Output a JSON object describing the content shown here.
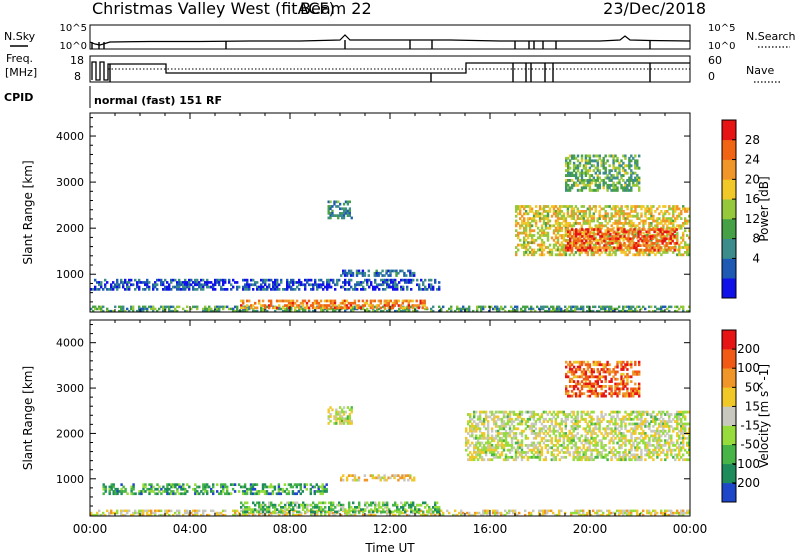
{
  "header": {
    "station": "Christmas Valley West (fitACF)",
    "beam": "Beam 22",
    "date": "23/Dec/2018"
  },
  "status_panels": {
    "nsky_label": "N.Sky",
    "nsearch_label": "N.Search",
    "noise_ticks_left": [
      "10^5",
      "10^0"
    ],
    "noise_ticks_right": [
      "10^5",
      "10^0"
    ],
    "freq_label_line1": "Freq.",
    "freq_label_line2": "[MHz]",
    "freq_ticks": [
      "18",
      "8"
    ],
    "nave_label": "Nave",
    "nave_ticks": [
      "60",
      "0"
    ],
    "cpid_label": "CPID",
    "cpid_value": "normal (fast) 151 RF"
  },
  "chart_data": [
    {
      "type": "heatmap",
      "id": "power",
      "ylabel": "Slant Range [km]",
      "xlabel": "",
      "yticks": [
        1000,
        2000,
        3000,
        4000
      ],
      "ylim": [
        180,
        4500
      ],
      "xlim_hours": [
        0,
        24
      ],
      "colorbar_label": "Power [dB]",
      "colorbar_ticks": [
        "28",
        "24",
        "20",
        "16",
        "12",
        "8",
        "4"
      ],
      "colorbar_colors": [
        "#1010e8",
        "#1e5ab4",
        "#3c8c8c",
        "#46a046",
        "#96c83c",
        "#f0c828",
        "#f09628",
        "#f06414",
        "#e61414"
      ],
      "regions": [
        {
          "t0": 0.0,
          "t1": 24.0,
          "r0": 180,
          "r1": 320,
          "level": 0.35
        },
        {
          "t0": 6.0,
          "t1": 13.5,
          "r0": 250,
          "r1": 450,
          "level": 0.75
        },
        {
          "t0": 0.0,
          "t1": 14.0,
          "r0": 650,
          "r1": 900,
          "level": 0.15
        },
        {
          "t0": 10.0,
          "t1": 13.0,
          "r0": 950,
          "r1": 1100,
          "level": 0.18
        },
        {
          "t0": 17.0,
          "t1": 24.0,
          "r0": 1400,
          "r1": 2500,
          "level": 0.6
        },
        {
          "t0": 19.0,
          "t1": 23.5,
          "r0": 1500,
          "r1": 2000,
          "level": 0.85
        },
        {
          "t0": 19.0,
          "t1": 22.0,
          "r0": 2800,
          "r1": 3600,
          "level": 0.4
        },
        {
          "t0": 9.5,
          "t1": 10.5,
          "r0": 2200,
          "r1": 2600,
          "level": 0.3
        }
      ]
    },
    {
      "type": "heatmap",
      "id": "velocity",
      "ylabel": "Slant Range [km]",
      "xlabel": "Time UT",
      "yticks": [
        1000,
        2000,
        3000,
        4000
      ],
      "ylim": [
        180,
        4500
      ],
      "xticks": [
        "00:00",
        "04:00",
        "08:00",
        "12:00",
        "16:00",
        "20:00",
        "00:00"
      ],
      "xlim_hours": [
        0,
        24
      ],
      "colorbar_label": "Velocity [m s^-1]",
      "colorbar_ticks": [
        "200",
        "100",
        "50",
        "15",
        "-15",
        "-50",
        "-100",
        "-200"
      ],
      "colorbar_colors": [
        "#1e46c8",
        "#1e8c5a",
        "#46b446",
        "#96dc3c",
        "#c8c8be",
        "#f0c828",
        "#f09628",
        "#f05a14",
        "#e61414"
      ],
      "regions": [
        {
          "t0": 0.0,
          "t1": 24.0,
          "r0": 180,
          "r1": 320,
          "level": 0.55
        },
        {
          "t0": 6.0,
          "t1": 14.0,
          "r0": 250,
          "r1": 500,
          "level": 0.3
        },
        {
          "t0": 0.5,
          "t1": 9.5,
          "r0": 650,
          "r1": 900,
          "level": 0.25
        },
        {
          "t0": 10.0,
          "t1": 13.0,
          "r0": 950,
          "r1": 1100,
          "level": 0.6
        },
        {
          "t0": 15.0,
          "t1": 24.0,
          "r0": 1400,
          "r1": 2500,
          "level": 0.48
        },
        {
          "t0": 19.0,
          "t1": 22.0,
          "r0": 2800,
          "r1": 3600,
          "level": 0.8
        },
        {
          "t0": 9.5,
          "t1": 10.5,
          "r0": 2200,
          "r1": 2600,
          "level": 0.48
        }
      ]
    }
  ]
}
